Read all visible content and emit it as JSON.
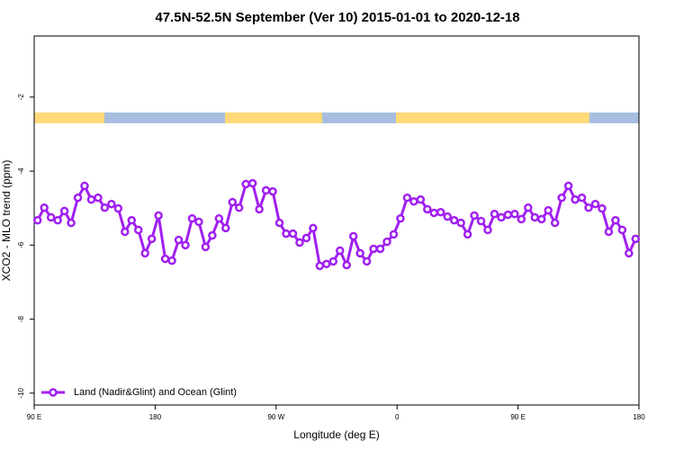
{
  "chart_data": {
    "type": "line",
    "title": "47.5N-52.5N September (Ver 10)   2015-01-01 to 2020-12-18",
    "x_label": "Longitude (deg E)",
    "y_label": "XCO2 - MLO trend (ppm)",
    "xlim": [
      90,
      540
    ],
    "xticks": [
      {
        "value": 90,
        "label": "90 E"
      },
      {
        "value": 180,
        "label": "180"
      },
      {
        "value": 270,
        "label": "90 W"
      },
      {
        "value": 360,
        "label": "0"
      },
      {
        "value": 450,
        "label": "90 E"
      },
      {
        "value": 540,
        "label": "180"
      }
    ],
    "ylim": [
      -10.32,
      -0.35
    ],
    "yticks": [
      -2,
      -4,
      -6,
      -8,
      -10
    ],
    "legend": "bottom-left",
    "x": [
      92.5,
      97.5,
      102.5,
      107.5,
      112.5,
      117.5,
      122.5,
      127.5,
      132.5,
      137.5,
      142.5,
      147.5,
      152.5,
      157.5,
      162.5,
      167.5,
      172.5,
      177.5,
      182.5,
      187.5,
      192.5,
      197.5,
      202.5,
      207.5,
      212.5,
      217.5,
      222.5,
      227.5,
      232.5,
      237.5,
      242.5,
      247.5,
      252.5,
      257.5,
      262.5,
      267.5,
      272.5,
      277.5,
      282.5,
      287.5,
      292.5,
      297.5,
      302.5,
      307.5,
      312.5,
      317.5,
      322.5,
      327.5,
      332.5,
      337.5,
      342.5,
      347.5,
      352.5,
      357.5,
      362.5,
      367.5,
      372.5,
      377.5,
      382.5,
      387.5,
      392.5,
      397.5,
      402.5,
      407.5,
      412.5,
      417.5,
      422.5,
      427.5,
      432.5,
      437.5,
      442.5,
      447.5,
      452.5,
      457.5,
      462.5,
      467.5,
      472.5,
      477.5,
      482.5,
      487.5,
      492.5,
      497.5,
      502.5,
      507.5,
      512.5,
      517.5,
      522.5,
      527.5,
      532.5,
      537.5
    ],
    "series": [
      {
        "name": "Land (Nadir&Glint) and Ocean (Glint)",
        "color": "#a020f0",
        "values": [
          -5.33,
          -4.99,
          -5.25,
          -5.33,
          -5.08,
          -5.4,
          -4.72,
          -4.4,
          -4.77,
          -4.72,
          -4.99,
          -4.89,
          -5.01,
          -5.64,
          -5.33,
          -5.59,
          -6.22,
          -5.83,
          -5.2,
          -6.37,
          -6.42,
          -5.86,
          -6.0,
          -5.28,
          -5.37,
          -6.05,
          -5.74,
          -5.28,
          -5.54,
          -4.84,
          -4.99,
          -4.35,
          -4.33,
          -5.03,
          -4.52,
          -4.55,
          -5.4,
          -5.69,
          -5.69,
          -5.93,
          -5.81,
          -5.54,
          -6.56,
          -6.51,
          -6.44,
          -6.15,
          -6.54,
          -5.76,
          -6.22,
          -6.44,
          -6.1,
          -6.1,
          -5.91,
          -5.71,
          -5.28,
          -4.72,
          -4.82,
          -4.77,
          -5.03,
          -5.13,
          -5.11,
          -5.23,
          -5.33,
          -5.4,
          -5.71,
          -5.2,
          -5.35,
          -5.59,
          -5.16,
          -5.25,
          -5.18,
          -5.16,
          -5.3,
          -4.99,
          -5.25,
          -5.3,
          -5.06,
          -5.4,
          -4.72,
          -4.4,
          -4.77,
          -4.72,
          -4.99,
          -4.89,
          -5.01,
          -5.64,
          -5.33,
          -5.59,
          -6.22,
          -5.83
        ]
      }
    ]
  }
}
